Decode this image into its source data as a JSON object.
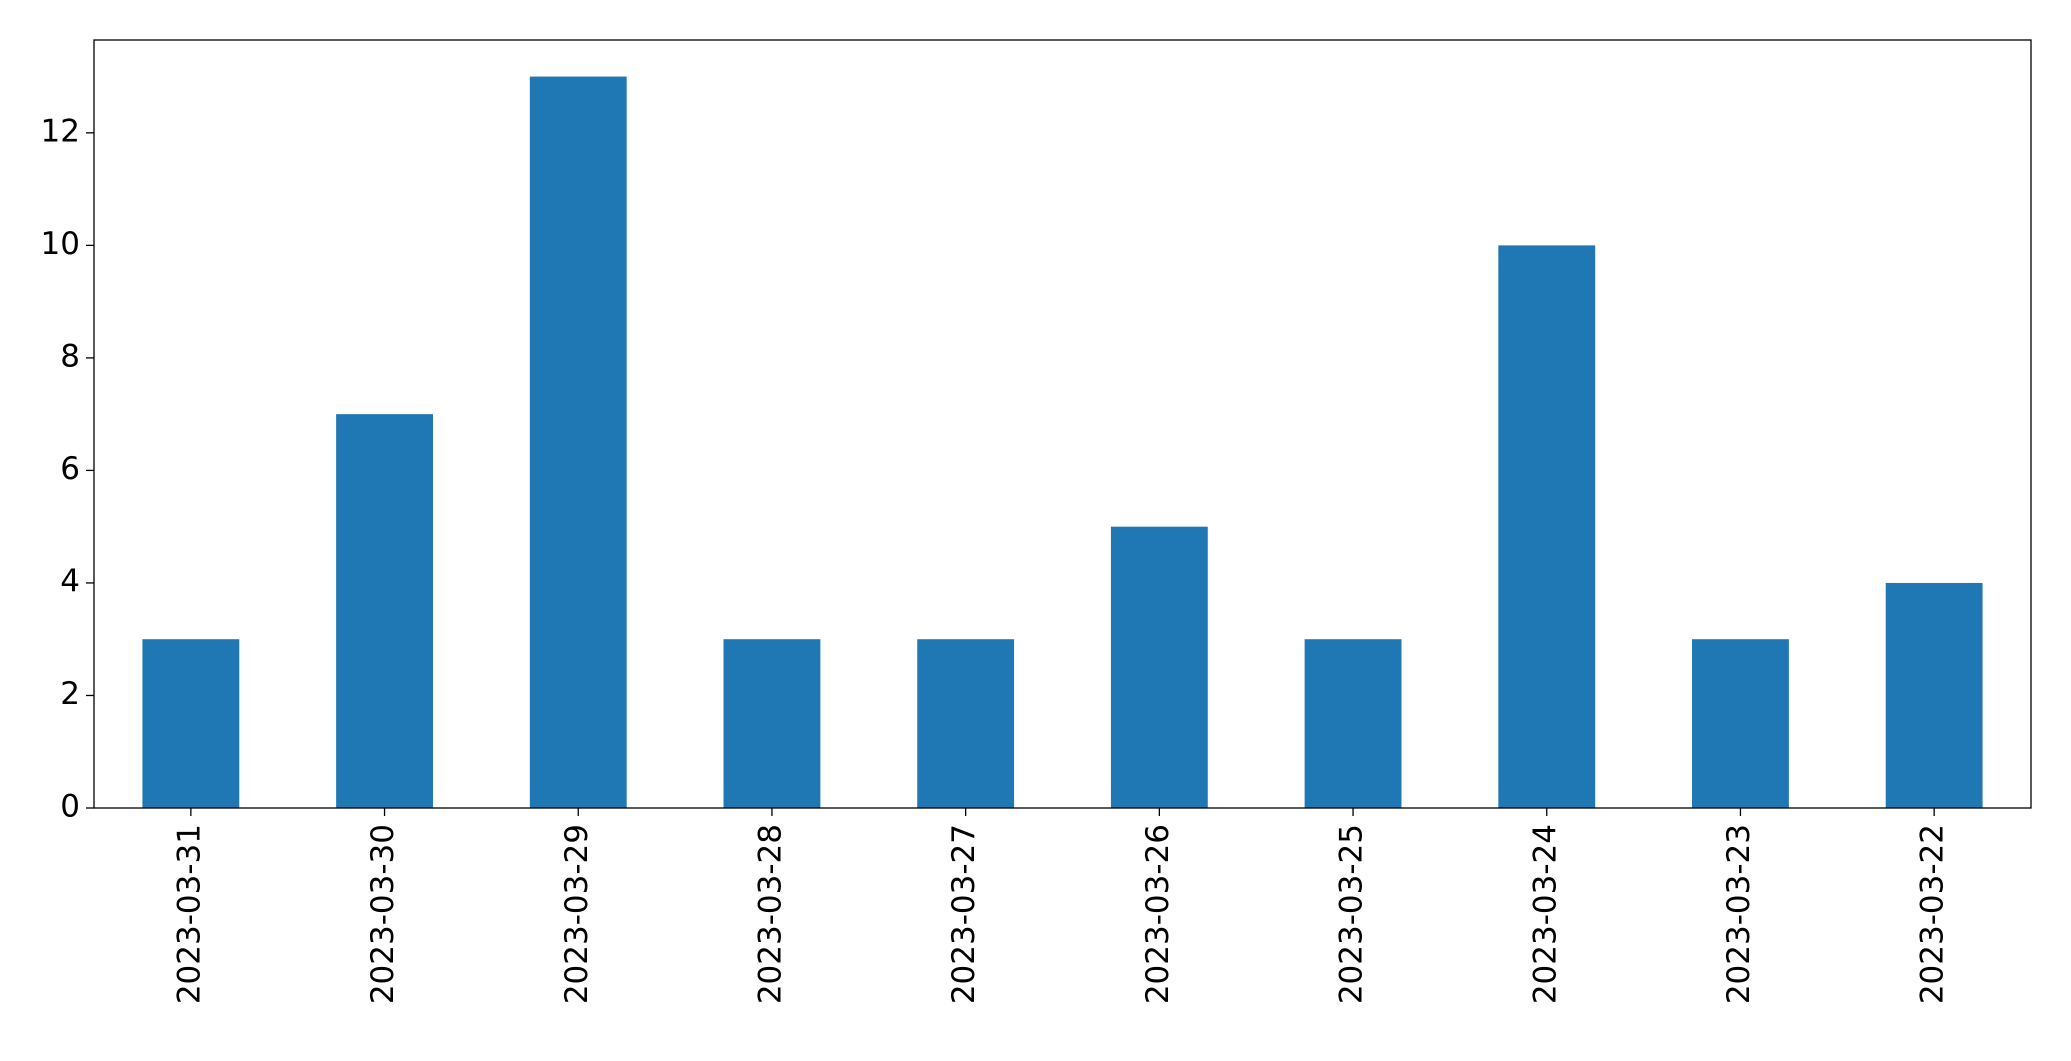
{
  "chart_data": {
    "type": "bar",
    "categories": [
      "2023-03-31",
      "2023-03-30",
      "2023-03-29",
      "2023-03-28",
      "2023-03-27",
      "2023-03-26",
      "2023-03-25",
      "2023-03-24",
      "2023-03-23",
      "2023-03-22"
    ],
    "values": [
      3,
      7,
      13,
      3,
      3,
      5,
      3,
      10,
      3,
      4
    ],
    "color": "#1f77b4",
    "ylim": [
      0,
      13.65
    ],
    "yticks": [
      0,
      2,
      4,
      6,
      8,
      10,
      12
    ],
    "grid": false
  }
}
